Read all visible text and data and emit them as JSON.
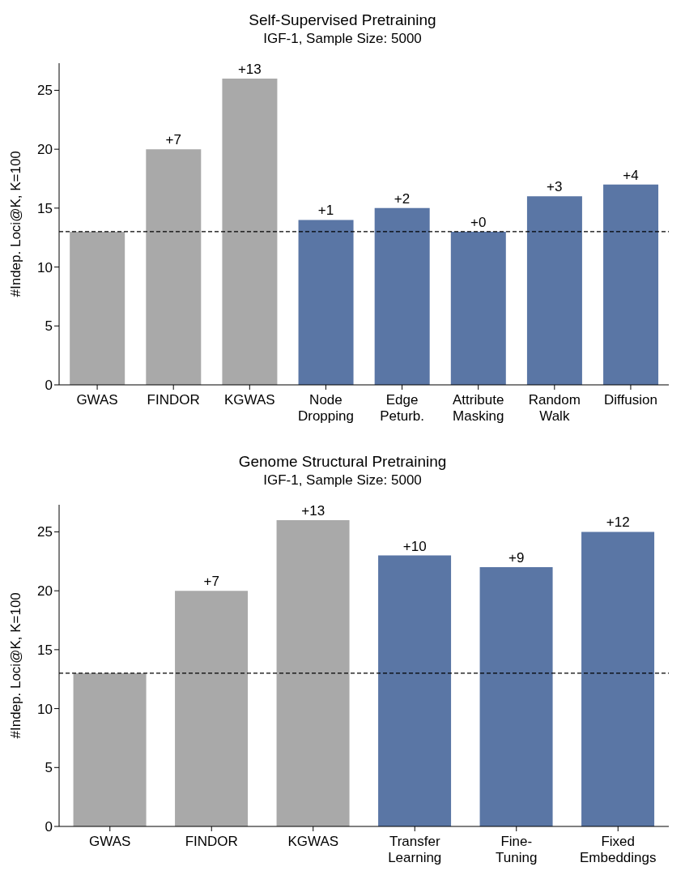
{
  "chart_data": [
    {
      "type": "bar",
      "title": "Self-Supervised Pretraining",
      "subtitle": "IGF-1, Sample Size: 5000",
      "ylabel": "#Indep. Loci@K, K=100",
      "categories": [
        "GWAS",
        "FINDOR",
        "KGWAS",
        "Node\nDropping",
        "Edge\nPeturb.",
        "Attribute\nMasking",
        "Random\nWalk",
        "Diffusion"
      ],
      "values": [
        13,
        20,
        26,
        14,
        15,
        13,
        16,
        17
      ],
      "colors": [
        "#a9a9a9",
        "#a9a9a9",
        "#a9a9a9",
        "#5a76a5",
        "#5a76a5",
        "#5a76a5",
        "#5a76a5",
        "#5a76a5"
      ],
      "annotations": [
        {
          "text": "+7",
          "x": "FINDOR",
          "y": 20
        },
        {
          "text": "+13",
          "x": "KGWAS",
          "y": 26
        },
        {
          "text": "+1",
          "x": "Node\nDropping",
          "y": 14
        },
        {
          "text": "+2",
          "x": "Edge\nPeturb.",
          "y": 15
        },
        {
          "text": "+0",
          "x": "Attribute\nMasking",
          "y": 13
        },
        {
          "text": "+3",
          "x": "Random\nWalk",
          "y": 16
        },
        {
          "text": "+4",
          "x": "Diffusion",
          "y": 17
        }
      ],
      "ylim": [
        0,
        27.3
      ],
      "yticks": [
        0,
        5,
        10,
        15,
        20,
        25
      ],
      "grid": false,
      "legend": false,
      "ref_lines": [
        {
          "axis": "y",
          "value": 13,
          "color": "#000000",
          "line_style": "dashed"
        }
      ]
    },
    {
      "type": "bar",
      "title": "Genome Structural Pretraining",
      "subtitle": "IGF-1, Sample Size: 5000",
      "ylabel": "#Indep. Loci@K, K=100",
      "categories": [
        "GWAS",
        "FINDOR",
        "KGWAS",
        "Transfer\nLearning",
        "Fine-\nTuning",
        "Fixed\nEmbeddings"
      ],
      "values": [
        13,
        20,
        26,
        23,
        22,
        25
      ],
      "colors": [
        "#a9a9a9",
        "#a9a9a9",
        "#a9a9a9",
        "#5a76a5",
        "#5a76a5",
        "#5a76a5"
      ],
      "annotations": [
        {
          "text": "+7",
          "x": "FINDOR",
          "y": 20
        },
        {
          "text": "+13",
          "x": "KGWAS",
          "y": 26
        },
        {
          "text": "+10",
          "x": "Transfer\nLearning",
          "y": 23
        },
        {
          "text": "+9",
          "x": "Fine-\nTuning",
          "y": 22
        },
        {
          "text": "+12",
          "x": "Fixed\nEmbeddings",
          "y": 25
        }
      ],
      "ylim": [
        0,
        27.3
      ],
      "yticks": [
        0,
        5,
        10,
        15,
        20,
        25
      ],
      "grid": false,
      "legend": false,
      "ref_lines": [
        {
          "axis": "y",
          "value": 13,
          "color": "#000000",
          "line_style": "dashed"
        }
      ]
    }
  ]
}
